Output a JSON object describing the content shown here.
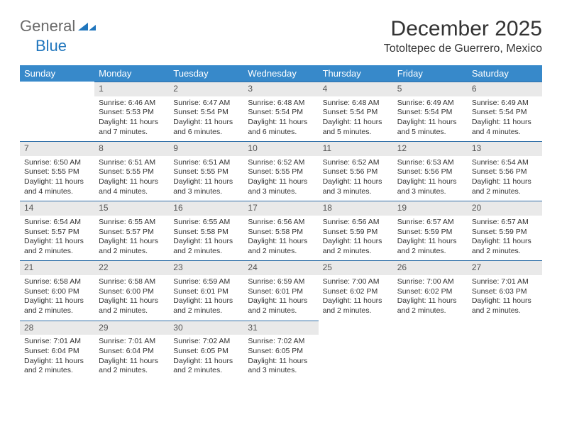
{
  "brand": {
    "text_general": "General",
    "text_blue": "Blue",
    "logo_color": "#2076bd",
    "logo_color_light": "#6fb4e4"
  },
  "header": {
    "title": "December 2025",
    "subtitle": "Totoltepec de Guerrero, Mexico"
  },
  "colors": {
    "header_bg": "#3789ca",
    "header_text": "#ffffff",
    "daynum_bg": "#e9e9e9",
    "daynum_border": "#2f6fa8",
    "body_text": "#333333"
  },
  "weekdays": [
    "Sunday",
    "Monday",
    "Tuesday",
    "Wednesday",
    "Thursday",
    "Friday",
    "Saturday"
  ],
  "weeks": [
    [
      null,
      {
        "n": "1",
        "sr": "Sunrise: 6:46 AM",
        "ss": "Sunset: 5:53 PM",
        "dl": "Daylight: 11 hours and 7 minutes."
      },
      {
        "n": "2",
        "sr": "Sunrise: 6:47 AM",
        "ss": "Sunset: 5:54 PM",
        "dl": "Daylight: 11 hours and 6 minutes."
      },
      {
        "n": "3",
        "sr": "Sunrise: 6:48 AM",
        "ss": "Sunset: 5:54 PM",
        "dl": "Daylight: 11 hours and 6 minutes."
      },
      {
        "n": "4",
        "sr": "Sunrise: 6:48 AM",
        "ss": "Sunset: 5:54 PM",
        "dl": "Daylight: 11 hours and 5 minutes."
      },
      {
        "n": "5",
        "sr": "Sunrise: 6:49 AM",
        "ss": "Sunset: 5:54 PM",
        "dl": "Daylight: 11 hours and 5 minutes."
      },
      {
        "n": "6",
        "sr": "Sunrise: 6:49 AM",
        "ss": "Sunset: 5:54 PM",
        "dl": "Daylight: 11 hours and 4 minutes."
      }
    ],
    [
      {
        "n": "7",
        "sr": "Sunrise: 6:50 AM",
        "ss": "Sunset: 5:55 PM",
        "dl": "Daylight: 11 hours and 4 minutes."
      },
      {
        "n": "8",
        "sr": "Sunrise: 6:51 AM",
        "ss": "Sunset: 5:55 PM",
        "dl": "Daylight: 11 hours and 4 minutes."
      },
      {
        "n": "9",
        "sr": "Sunrise: 6:51 AM",
        "ss": "Sunset: 5:55 PM",
        "dl": "Daylight: 11 hours and 3 minutes."
      },
      {
        "n": "10",
        "sr": "Sunrise: 6:52 AM",
        "ss": "Sunset: 5:55 PM",
        "dl": "Daylight: 11 hours and 3 minutes."
      },
      {
        "n": "11",
        "sr": "Sunrise: 6:52 AM",
        "ss": "Sunset: 5:56 PM",
        "dl": "Daylight: 11 hours and 3 minutes."
      },
      {
        "n": "12",
        "sr": "Sunrise: 6:53 AM",
        "ss": "Sunset: 5:56 PM",
        "dl": "Daylight: 11 hours and 3 minutes."
      },
      {
        "n": "13",
        "sr": "Sunrise: 6:54 AM",
        "ss": "Sunset: 5:56 PM",
        "dl": "Daylight: 11 hours and 2 minutes."
      }
    ],
    [
      {
        "n": "14",
        "sr": "Sunrise: 6:54 AM",
        "ss": "Sunset: 5:57 PM",
        "dl": "Daylight: 11 hours and 2 minutes."
      },
      {
        "n": "15",
        "sr": "Sunrise: 6:55 AM",
        "ss": "Sunset: 5:57 PM",
        "dl": "Daylight: 11 hours and 2 minutes."
      },
      {
        "n": "16",
        "sr": "Sunrise: 6:55 AM",
        "ss": "Sunset: 5:58 PM",
        "dl": "Daylight: 11 hours and 2 minutes."
      },
      {
        "n": "17",
        "sr": "Sunrise: 6:56 AM",
        "ss": "Sunset: 5:58 PM",
        "dl": "Daylight: 11 hours and 2 minutes."
      },
      {
        "n": "18",
        "sr": "Sunrise: 6:56 AM",
        "ss": "Sunset: 5:59 PM",
        "dl": "Daylight: 11 hours and 2 minutes."
      },
      {
        "n": "19",
        "sr": "Sunrise: 6:57 AM",
        "ss": "Sunset: 5:59 PM",
        "dl": "Daylight: 11 hours and 2 minutes."
      },
      {
        "n": "20",
        "sr": "Sunrise: 6:57 AM",
        "ss": "Sunset: 5:59 PM",
        "dl": "Daylight: 11 hours and 2 minutes."
      }
    ],
    [
      {
        "n": "21",
        "sr": "Sunrise: 6:58 AM",
        "ss": "Sunset: 6:00 PM",
        "dl": "Daylight: 11 hours and 2 minutes."
      },
      {
        "n": "22",
        "sr": "Sunrise: 6:58 AM",
        "ss": "Sunset: 6:00 PM",
        "dl": "Daylight: 11 hours and 2 minutes."
      },
      {
        "n": "23",
        "sr": "Sunrise: 6:59 AM",
        "ss": "Sunset: 6:01 PM",
        "dl": "Daylight: 11 hours and 2 minutes."
      },
      {
        "n": "24",
        "sr": "Sunrise: 6:59 AM",
        "ss": "Sunset: 6:01 PM",
        "dl": "Daylight: 11 hours and 2 minutes."
      },
      {
        "n": "25",
        "sr": "Sunrise: 7:00 AM",
        "ss": "Sunset: 6:02 PM",
        "dl": "Daylight: 11 hours and 2 minutes."
      },
      {
        "n": "26",
        "sr": "Sunrise: 7:00 AM",
        "ss": "Sunset: 6:02 PM",
        "dl": "Daylight: 11 hours and 2 minutes."
      },
      {
        "n": "27",
        "sr": "Sunrise: 7:01 AM",
        "ss": "Sunset: 6:03 PM",
        "dl": "Daylight: 11 hours and 2 minutes."
      }
    ],
    [
      {
        "n": "28",
        "sr": "Sunrise: 7:01 AM",
        "ss": "Sunset: 6:04 PM",
        "dl": "Daylight: 11 hours and 2 minutes."
      },
      {
        "n": "29",
        "sr": "Sunrise: 7:01 AM",
        "ss": "Sunset: 6:04 PM",
        "dl": "Daylight: 11 hours and 2 minutes."
      },
      {
        "n": "30",
        "sr": "Sunrise: 7:02 AM",
        "ss": "Sunset: 6:05 PM",
        "dl": "Daylight: 11 hours and 2 minutes."
      },
      {
        "n": "31",
        "sr": "Sunrise: 7:02 AM",
        "ss": "Sunset: 6:05 PM",
        "dl": "Daylight: 11 hours and 3 minutes."
      },
      null,
      null,
      null
    ]
  ]
}
